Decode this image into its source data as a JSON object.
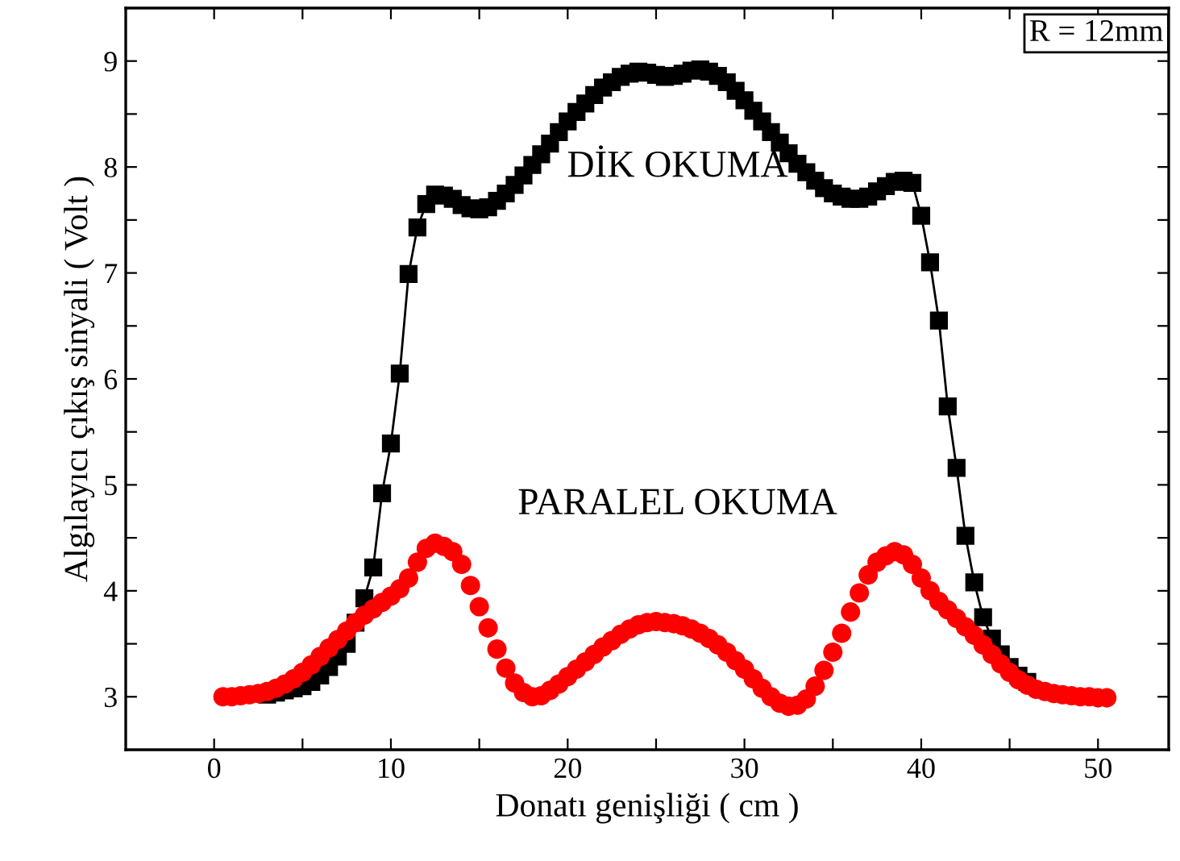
{
  "chart_data": {
    "type": "line",
    "xlabel": "Donatı genişliği ( cm )",
    "ylabel": "Algılayıcı çıkış sinyali ( Volt )",
    "xlim": [
      -5,
      54
    ],
    "ylim": [
      2.5,
      9.5
    ],
    "xticks": [
      0,
      {
        "value": 5,
        "label": null
      },
      10,
      {
        "value": 15,
        "label": null
      },
      20,
      {
        "value": 25,
        "label": null
      },
      30,
      {
        "value": 35,
        "label": null
      },
      40,
      {
        "value": 45,
        "label": null
      },
      50
    ],
    "yticks": [
      3,
      {
        "value": 3.5,
        "label": null
      },
      4,
      {
        "value": 4.5,
        "label": null
      },
      5,
      {
        "value": 5.5,
        "label": null
      },
      6,
      {
        "value": 6.5,
        "label": null
      },
      7,
      {
        "value": 7.5,
        "label": null
      },
      8,
      {
        "value": 8.5,
        "label": null
      },
      9
    ],
    "grid": false,
    "annotations": [
      "R = 12mm"
    ],
    "series": [
      {
        "name": "DİK OKUMA",
        "marker": "square",
        "color": "#000000",
        "x": [
          3,
          3.5,
          4,
          4.5,
          5,
          5.5,
          6,
          6.5,
          7,
          7.5,
          8,
          8.5,
          9,
          9.5,
          10,
          10.5,
          11,
          11.5,
          12,
          12.5,
          13,
          13.5,
          14,
          14.5,
          15,
          15.5,
          16,
          16.5,
          17,
          17.5,
          18,
          18.5,
          19,
          19.5,
          20,
          20.5,
          21,
          21.5,
          22,
          22.5,
          23,
          23.5,
          24,
          24.5,
          25,
          25.5,
          26,
          26.5,
          27,
          27.5,
          28,
          28.5,
          29,
          29.5,
          30,
          30.5,
          31,
          31.5,
          32,
          32.5,
          33,
          33.5,
          34,
          34.5,
          35,
          35.5,
          36,
          36.5,
          37,
          37.5,
          38,
          38.5,
          39,
          39.5,
          40,
          40.5,
          41,
          41.5,
          42,
          42.5,
          43,
          43.5,
          44,
          44.5,
          45,
          45.5,
          46
        ],
        "values": [
          3.02,
          3.04,
          3.06,
          3.08,
          3.1,
          3.14,
          3.2,
          3.28,
          3.38,
          3.5,
          3.7,
          3.93,
          4.22,
          4.92,
          5.39,
          6.05,
          6.99,
          7.43,
          7.65,
          7.74,
          7.73,
          7.7,
          7.64,
          7.61,
          7.6,
          7.62,
          7.68,
          7.75,
          7.83,
          7.92,
          8.02,
          8.12,
          8.22,
          8.33,
          8.43,
          8.52,
          8.6,
          8.68,
          8.75,
          8.8,
          8.85,
          8.88,
          8.9,
          8.89,
          8.87,
          8.85,
          8.86,
          8.88,
          8.91,
          8.92,
          8.9,
          8.86,
          8.8,
          8.72,
          8.63,
          8.53,
          8.43,
          8.33,
          8.23,
          8.13,
          8.03,
          7.95,
          7.87,
          7.8,
          7.75,
          7.72,
          7.7,
          7.7,
          7.72,
          7.77,
          7.82,
          7.86,
          7.87,
          7.85,
          7.54,
          7.1,
          6.55,
          5.74,
          5.16,
          4.52,
          4.08,
          3.75,
          3.55,
          3.4,
          3.28,
          3.2,
          3.14
        ]
      },
      {
        "name": "PARALEL OKUMA",
        "type": "scatter",
        "marker": "circle",
        "color": "#ff0000",
        "x": [
          0.5,
          1,
          1.5,
          2,
          2.5,
          3,
          3.5,
          4,
          4.5,
          5,
          5.5,
          6,
          6.5,
          7,
          7.5,
          8,
          8.5,
          9,
          9.5,
          10,
          10.5,
          11,
          11.5,
          12,
          12.5,
          13,
          13.5,
          14,
          14.5,
          15,
          15.5,
          16,
          16.5,
          17,
          17.5,
          18,
          18.5,
          19,
          19.5,
          20,
          20.5,
          21,
          21.5,
          22,
          22.5,
          23,
          23.5,
          24,
          24.5,
          25,
          25.5,
          26,
          26.5,
          27,
          27.5,
          28,
          28.5,
          29,
          29.5,
          30,
          30.5,
          31,
          31.5,
          32,
          32.5,
          33,
          33.5,
          34,
          34.5,
          35,
          35.5,
          36,
          36.5,
          37,
          37.5,
          38,
          38.5,
          39,
          39.5,
          40,
          40.5,
          41,
          41.5,
          42,
          42.5,
          43,
          43.5,
          44,
          44.5,
          45,
          45.5,
          46,
          46.5,
          47,
          47.5,
          48,
          48.5,
          49,
          49.5,
          50,
          50.5
        ],
        "values": [
          3.0,
          3.0,
          3.01,
          3.02,
          3.03,
          3.05,
          3.08,
          3.12,
          3.17,
          3.23,
          3.3,
          3.38,
          3.46,
          3.54,
          3.62,
          3.7,
          3.77,
          3.83,
          3.89,
          3.95,
          4.02,
          4.12,
          4.27,
          4.4,
          4.45,
          4.42,
          4.37,
          4.25,
          4.05,
          3.85,
          3.65,
          3.45,
          3.27,
          3.13,
          3.04,
          3.0,
          3.01,
          3.06,
          3.12,
          3.19,
          3.26,
          3.33,
          3.4,
          3.47,
          3.53,
          3.59,
          3.64,
          3.68,
          3.7,
          3.71,
          3.7,
          3.69,
          3.67,
          3.64,
          3.6,
          3.55,
          3.49,
          3.42,
          3.34,
          3.26,
          3.17,
          3.08,
          3.0,
          2.94,
          2.91,
          2.92,
          2.98,
          3.1,
          3.25,
          3.42,
          3.6,
          3.8,
          3.98,
          4.15,
          4.27,
          4.33,
          4.37,
          4.34,
          4.25,
          4.12,
          4.0,
          3.9,
          3.82,
          3.74,
          3.66,
          3.58,
          3.49,
          3.4,
          3.31,
          3.23,
          3.16,
          3.11,
          3.07,
          3.05,
          3.03,
          3.02,
          3.01,
          3.0,
          3.0,
          2.99,
          2.99
        ]
      }
    ]
  }
}
